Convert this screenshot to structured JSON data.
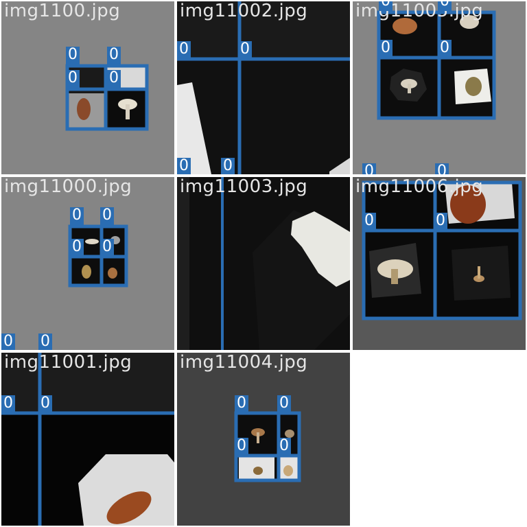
{
  "mosaic": {
    "tiles": [
      {
        "filename": "img1100.jpg",
        "background": "#858585",
        "labels": [
          "0",
          "0",
          "0",
          "0"
        ]
      },
      {
        "filename": "img11002.jpg",
        "background": "#111111",
        "labels": [
          "0",
          "0",
          "0",
          "0"
        ]
      },
      {
        "filename": "img11005.jpg",
        "background": "#858585",
        "labels": [
          "0",
          "0",
          "0",
          "0",
          "0",
          "0"
        ]
      },
      {
        "filename": "img11000.jpg",
        "background": "#858585",
        "labels": [
          "0",
          "0",
          "0",
          "0",
          "0",
          "0"
        ]
      },
      {
        "filename": "img11003.jpg",
        "background": "#0f0f0f",
        "labels": []
      },
      {
        "filename": "img11006.jpg",
        "background": "#585858",
        "labels": [
          "0",
          "0"
        ]
      },
      {
        "filename": "img11001.jpg",
        "background": "#050505",
        "labels": [
          "0",
          "0"
        ]
      },
      {
        "filename": "img11004.jpg",
        "background": "#424242",
        "labels": [
          "0",
          "0",
          "0",
          "0"
        ]
      }
    ],
    "box_color": "#2a6db3",
    "label_text_color": "#ffffff"
  }
}
